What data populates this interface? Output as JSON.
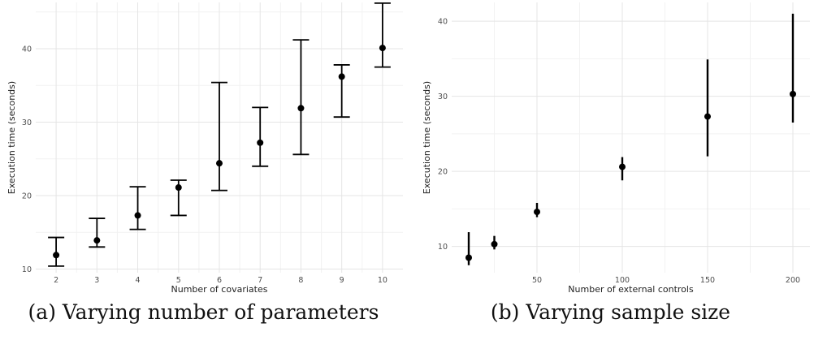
{
  "chart_data": [
    {
      "type": "errorbar",
      "caption": "(a) Varying number of parameters",
      "xlabel": "Number of covariates",
      "ylabel": "Execution time (seconds)",
      "x_ticks": [
        2,
        3,
        4,
        5,
        6,
        7,
        8,
        9,
        10
      ],
      "y_ticks": [
        10,
        20,
        30,
        40
      ],
      "xlim": [
        1.5,
        10.5
      ],
      "ylim": [
        9.5,
        46.3
      ],
      "grid": true,
      "caps": true,
      "points": [
        {
          "x": 2,
          "y": 11.9,
          "low": 10.4,
          "high": 14.3
        },
        {
          "x": 3,
          "y": 13.9,
          "low": 13.0,
          "high": 16.9
        },
        {
          "x": 4,
          "y": 17.3,
          "low": 15.4,
          "high": 21.2
        },
        {
          "x": 5,
          "y": 21.1,
          "low": 17.3,
          "high": 22.1
        },
        {
          "x": 6,
          "y": 24.4,
          "low": 20.7,
          "high": 35.4
        },
        {
          "x": 7,
          "y": 27.2,
          "low": 24.0,
          "high": 32.0
        },
        {
          "x": 8,
          "y": 31.9,
          "low": 25.6,
          "high": 41.2
        },
        {
          "x": 9,
          "y": 36.2,
          "low": 30.7,
          "high": 37.8
        },
        {
          "x": 10,
          "y": 40.1,
          "low": 37.5,
          "high": 46.2
        }
      ]
    },
    {
      "type": "errorbar",
      "caption": "(b) Varying sample size",
      "xlabel": "Number of external controls",
      "ylabel": "Execution time (seconds)",
      "x_ticks": [
        50,
        100,
        150,
        200
      ],
      "y_ticks": [
        10,
        20,
        30,
        40
      ],
      "xlim": [
        0,
        210
      ],
      "ylim": [
        6.5,
        42.5
      ],
      "grid": true,
      "caps": false,
      "points": [
        {
          "x": 10,
          "y": 8.5,
          "low": 7.5,
          "high": 11.9
        },
        {
          "x": 25,
          "y": 10.3,
          "low": 9.6,
          "high": 11.4
        },
        {
          "x": 50,
          "y": 14.6,
          "low": 13.9,
          "high": 15.8
        },
        {
          "x": 100,
          "y": 20.6,
          "low": 18.8,
          "high": 21.9
        },
        {
          "x": 150,
          "y": 27.3,
          "low": 22.0,
          "high": 34.9
        },
        {
          "x": 200,
          "y": 30.3,
          "low": 26.5,
          "high": 41.0
        }
      ]
    }
  ]
}
